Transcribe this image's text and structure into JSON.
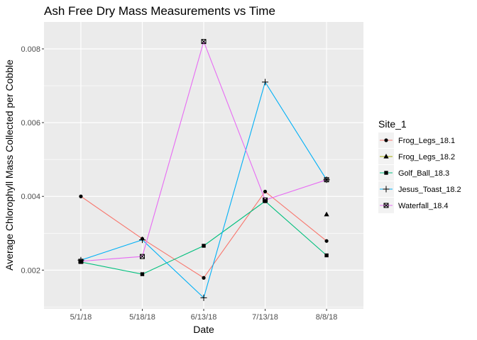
{
  "chart_data": {
    "type": "line",
    "title": "Ash Free Dry Mass Measurements vs Time",
    "xlabel": "Date",
    "ylabel": "Average Chlorophyll Mass Collected per Cobble",
    "categories": [
      "5/1/18",
      "5/18/18",
      "6/13/18",
      "7/13/18",
      "8/8/18"
    ],
    "ylim": [
      0.00095,
      0.00873
    ],
    "yticks": [
      0.002,
      0.004,
      0.006,
      0.008
    ],
    "ytick_labels": [
      "0.002",
      "0.004",
      "0.006",
      "0.008"
    ],
    "grid": true,
    "legend": {
      "title": "Site_1",
      "position": "right"
    },
    "series": [
      {
        "name": "Frog_Legs_18.1",
        "color": "#F8766D",
        "marker": "circle",
        "show_line": true,
        "values": [
          0.004,
          0.00285,
          0.00179,
          0.00413,
          0.00279
        ]
      },
      {
        "name": "Frog_Legs_18.2",
        "color": "#A3A500",
        "marker": "triangle",
        "show_line": false,
        "values": [
          null,
          null,
          null,
          null,
          0.00351
        ]
      },
      {
        "name": "Golf_Ball_18.3",
        "color": "#00BF7D",
        "marker": "square",
        "show_line": true,
        "values": [
          0.00222,
          0.00189,
          0.00266,
          0.00387,
          0.0024
        ]
      },
      {
        "name": "Jesus_Toast_18.2",
        "color": "#00B0F6",
        "marker": "plus",
        "show_line": true,
        "values": [
          0.00227,
          0.00282,
          0.00125,
          0.0071,
          0.00445
        ]
      },
      {
        "name": "Waterfall_18.4",
        "color": "#E76BF3",
        "marker": "boxx",
        "show_line": true,
        "values": [
          0.00224,
          0.00237,
          0.0082,
          0.0039,
          0.00445
        ]
      }
    ]
  }
}
